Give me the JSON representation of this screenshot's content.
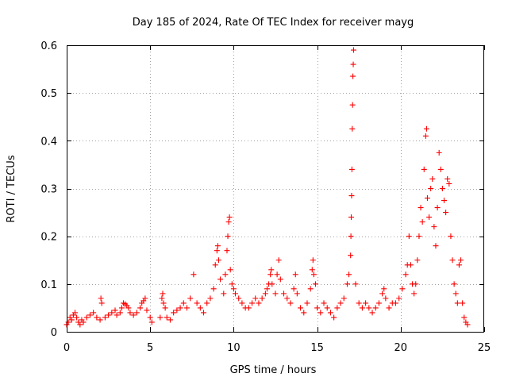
{
  "chart_data": {
    "type": "scatter",
    "title": "Day 185 of 2024, Rate Of TEC Index for receiver mayg",
    "xlabel": "GPS time / hours",
    "ylabel": "ROTI / TECUs",
    "xlim": [
      0,
      25
    ],
    "ylim": [
      0,
      0.6
    ],
    "xticks": [
      0,
      5,
      10,
      15,
      20,
      25
    ],
    "yticks": [
      0,
      0.1,
      0.2,
      0.3,
      0.4,
      0.5,
      0.6
    ],
    "xtick_labels": [
      "0",
      "5",
      "10",
      "15",
      "20",
      "25"
    ],
    "ytick_labels": [
      "0",
      "0.1",
      "0.2",
      "0.3",
      "0.4",
      "0.5",
      "0.6"
    ],
    "grid": true,
    "marker": "+",
    "color": "#ff0000",
    "x_data_range": [
      0,
      24
    ],
    "series": [
      {
        "name": "ROTI",
        "points": [
          [
            0.0,
            0.015
          ],
          [
            0.1,
            0.02
          ],
          [
            0.2,
            0.03
          ],
          [
            0.3,
            0.025
          ],
          [
            0.4,
            0.035
          ],
          [
            0.5,
            0.04
          ],
          [
            0.6,
            0.03
          ],
          [
            0.7,
            0.02
          ],
          [
            0.8,
            0.015
          ],
          [
            0.9,
            0.025
          ],
          [
            1.0,
            0.02
          ],
          [
            1.2,
            0.03
          ],
          [
            1.4,
            0.035
          ],
          [
            1.6,
            0.04
          ],
          [
            1.8,
            0.03
          ],
          [
            2.0,
            0.025
          ],
          [
            2.05,
            0.07
          ],
          [
            2.1,
            0.06
          ],
          [
            2.3,
            0.03
          ],
          [
            2.5,
            0.035
          ],
          [
            2.7,
            0.04
          ],
          [
            2.9,
            0.045
          ],
          [
            3.0,
            0.035
          ],
          [
            3.2,
            0.04
          ],
          [
            3.3,
            0.05
          ],
          [
            3.4,
            0.06
          ],
          [
            3.5,
            0.058
          ],
          [
            3.6,
            0.055
          ],
          [
            3.7,
            0.05
          ],
          [
            3.8,
            0.04
          ],
          [
            4.0,
            0.035
          ],
          [
            4.2,
            0.04
          ],
          [
            4.4,
            0.05
          ],
          [
            4.5,
            0.06
          ],
          [
            4.6,
            0.065
          ],
          [
            4.7,
            0.07
          ],
          [
            4.8,
            0.045
          ],
          [
            5.0,
            0.03
          ],
          [
            5.1,
            0.02
          ],
          [
            5.6,
            0.03
          ],
          [
            5.7,
            0.07
          ],
          [
            5.75,
            0.08
          ],
          [
            5.8,
            0.06
          ],
          [
            5.9,
            0.05
          ],
          [
            6.0,
            0.03
          ],
          [
            6.2,
            0.025
          ],
          [
            6.4,
            0.04
          ],
          [
            6.6,
            0.045
          ],
          [
            6.8,
            0.05
          ],
          [
            7.0,
            0.06
          ],
          [
            7.2,
            0.05
          ],
          [
            7.4,
            0.07
          ],
          [
            7.6,
            0.12
          ],
          [
            7.8,
            0.06
          ],
          [
            8.0,
            0.05
          ],
          [
            8.2,
            0.04
          ],
          [
            8.4,
            0.06
          ],
          [
            8.6,
            0.07
          ],
          [
            8.8,
            0.09
          ],
          [
            8.9,
            0.14
          ],
          [
            9.0,
            0.17
          ],
          [
            9.05,
            0.18
          ],
          [
            9.1,
            0.15
          ],
          [
            9.2,
            0.11
          ],
          [
            9.4,
            0.08
          ],
          [
            9.5,
            0.12
          ],
          [
            9.6,
            0.17
          ],
          [
            9.65,
            0.2
          ],
          [
            9.7,
            0.23
          ],
          [
            9.75,
            0.24
          ],
          [
            9.8,
            0.13
          ],
          [
            9.9,
            0.1
          ],
          [
            10.0,
            0.09
          ],
          [
            10.1,
            0.08
          ],
          [
            10.3,
            0.07
          ],
          [
            10.5,
            0.06
          ],
          [
            10.7,
            0.05
          ],
          [
            10.9,
            0.05
          ],
          [
            11.1,
            0.06
          ],
          [
            11.3,
            0.07
          ],
          [
            11.5,
            0.06
          ],
          [
            11.7,
            0.07
          ],
          [
            11.9,
            0.08
          ],
          [
            12.0,
            0.09
          ],
          [
            12.1,
            0.1
          ],
          [
            12.2,
            0.12
          ],
          [
            12.25,
            0.13
          ],
          [
            12.3,
            0.1
          ],
          [
            12.5,
            0.08
          ],
          [
            12.6,
            0.12
          ],
          [
            12.7,
            0.15
          ],
          [
            12.8,
            0.11
          ],
          [
            13.0,
            0.08
          ],
          [
            13.2,
            0.07
          ],
          [
            13.4,
            0.06
          ],
          [
            13.6,
            0.09
          ],
          [
            13.7,
            0.12
          ],
          [
            13.8,
            0.08
          ],
          [
            14.0,
            0.05
          ],
          [
            14.2,
            0.04
          ],
          [
            14.4,
            0.06
          ],
          [
            14.6,
            0.09
          ],
          [
            14.7,
            0.13
          ],
          [
            14.75,
            0.15
          ],
          [
            14.8,
            0.12
          ],
          [
            14.9,
            0.1
          ],
          [
            15.0,
            0.05
          ],
          [
            15.2,
            0.04
          ],
          [
            15.4,
            0.06
          ],
          [
            15.6,
            0.05
          ],
          [
            15.8,
            0.04
          ],
          [
            16.0,
            0.03
          ],
          [
            16.2,
            0.05
          ],
          [
            16.4,
            0.06
          ],
          [
            16.6,
            0.07
          ],
          [
            16.8,
            0.1
          ],
          [
            16.9,
            0.12
          ],
          [
            17.0,
            0.16
          ],
          [
            17.02,
            0.2
          ],
          [
            17.04,
            0.24
          ],
          [
            17.06,
            0.285
          ],
          [
            17.08,
            0.34
          ],
          [
            17.1,
            0.425
          ],
          [
            17.12,
            0.475
          ],
          [
            17.14,
            0.535
          ],
          [
            17.16,
            0.56
          ],
          [
            17.18,
            0.59
          ],
          [
            17.3,
            0.1
          ],
          [
            17.5,
            0.06
          ],
          [
            17.7,
            0.05
          ],
          [
            17.9,
            0.06
          ],
          [
            18.1,
            0.05
          ],
          [
            18.3,
            0.04
          ],
          [
            18.5,
            0.05
          ],
          [
            18.7,
            0.06
          ],
          [
            18.9,
            0.08
          ],
          [
            19.0,
            0.09
          ],
          [
            19.1,
            0.07
          ],
          [
            19.3,
            0.05
          ],
          [
            19.5,
            0.06
          ],
          [
            19.7,
            0.06
          ],
          [
            19.9,
            0.07
          ],
          [
            20.1,
            0.09
          ],
          [
            20.3,
            0.12
          ],
          [
            20.4,
            0.14
          ],
          [
            20.5,
            0.2
          ],
          [
            20.6,
            0.14
          ],
          [
            20.7,
            0.1
          ],
          [
            20.8,
            0.08
          ],
          [
            20.9,
            0.1
          ],
          [
            21.0,
            0.15
          ],
          [
            21.1,
            0.2
          ],
          [
            21.2,
            0.26
          ],
          [
            21.3,
            0.23
          ],
          [
            21.4,
            0.34
          ],
          [
            21.5,
            0.41
          ],
          [
            21.55,
            0.425
          ],
          [
            21.6,
            0.28
          ],
          [
            21.7,
            0.24
          ],
          [
            21.8,
            0.3
          ],
          [
            21.9,
            0.32
          ],
          [
            22.0,
            0.22
          ],
          [
            22.1,
            0.18
          ],
          [
            22.2,
            0.26
          ],
          [
            22.3,
            0.375
          ],
          [
            22.4,
            0.34
          ],
          [
            22.5,
            0.3
          ],
          [
            22.6,
            0.275
          ],
          [
            22.7,
            0.25
          ],
          [
            22.8,
            0.32
          ],
          [
            22.9,
            0.31
          ],
          [
            23.0,
            0.2
          ],
          [
            23.1,
            0.15
          ],
          [
            23.2,
            0.1
          ],
          [
            23.3,
            0.08
          ],
          [
            23.4,
            0.06
          ],
          [
            23.5,
            0.14
          ],
          [
            23.6,
            0.15
          ],
          [
            23.7,
            0.06
          ],
          [
            23.8,
            0.03
          ],
          [
            23.9,
            0.02
          ],
          [
            24.0,
            0.015
          ]
        ]
      }
    ]
  }
}
